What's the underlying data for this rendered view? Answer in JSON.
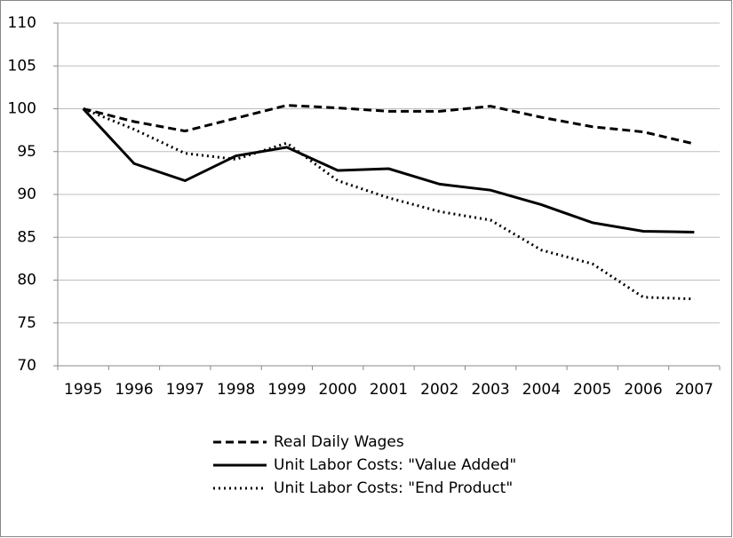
{
  "chart_data": {
    "type": "line",
    "categories": [
      "1995",
      "1996",
      "1997",
      "1998",
      "1999",
      "2000",
      "2001",
      "2002",
      "2003",
      "2004",
      "2005",
      "2006",
      "2007"
    ],
    "series": [
      {
        "name": "Real Daily Wages",
        "color": "#000000",
        "dash": "dashed",
        "values": [
          100,
          98.5,
          97.4,
          98.9,
          100.4,
          100.1,
          99.7,
          99.7,
          100.3,
          99.0,
          97.9,
          97.3,
          95.9
        ]
      },
      {
        "name": "Unit Labor Costs: \"Value Added\"",
        "color": "#000000",
        "dash": "solid",
        "values": [
          100,
          93.6,
          91.6,
          94.5,
          95.5,
          92.8,
          93.0,
          91.2,
          90.5,
          88.8,
          86.7,
          85.7,
          85.6
        ]
      },
      {
        "name": "Unit Labor Costs: \"End Product\"",
        "color": "#000000",
        "dash": "dotted",
        "values": [
          100,
          97.6,
          94.8,
          94.1,
          96.0,
          91.6,
          89.6,
          88.0,
          87.0,
          83.5,
          81.9,
          78.0,
          77.8
        ]
      }
    ],
    "ylim": [
      70,
      110
    ],
    "yticks": [
      70,
      75,
      80,
      85,
      90,
      95,
      100,
      105,
      110
    ],
    "grid": true,
    "legend": "bottom"
  }
}
